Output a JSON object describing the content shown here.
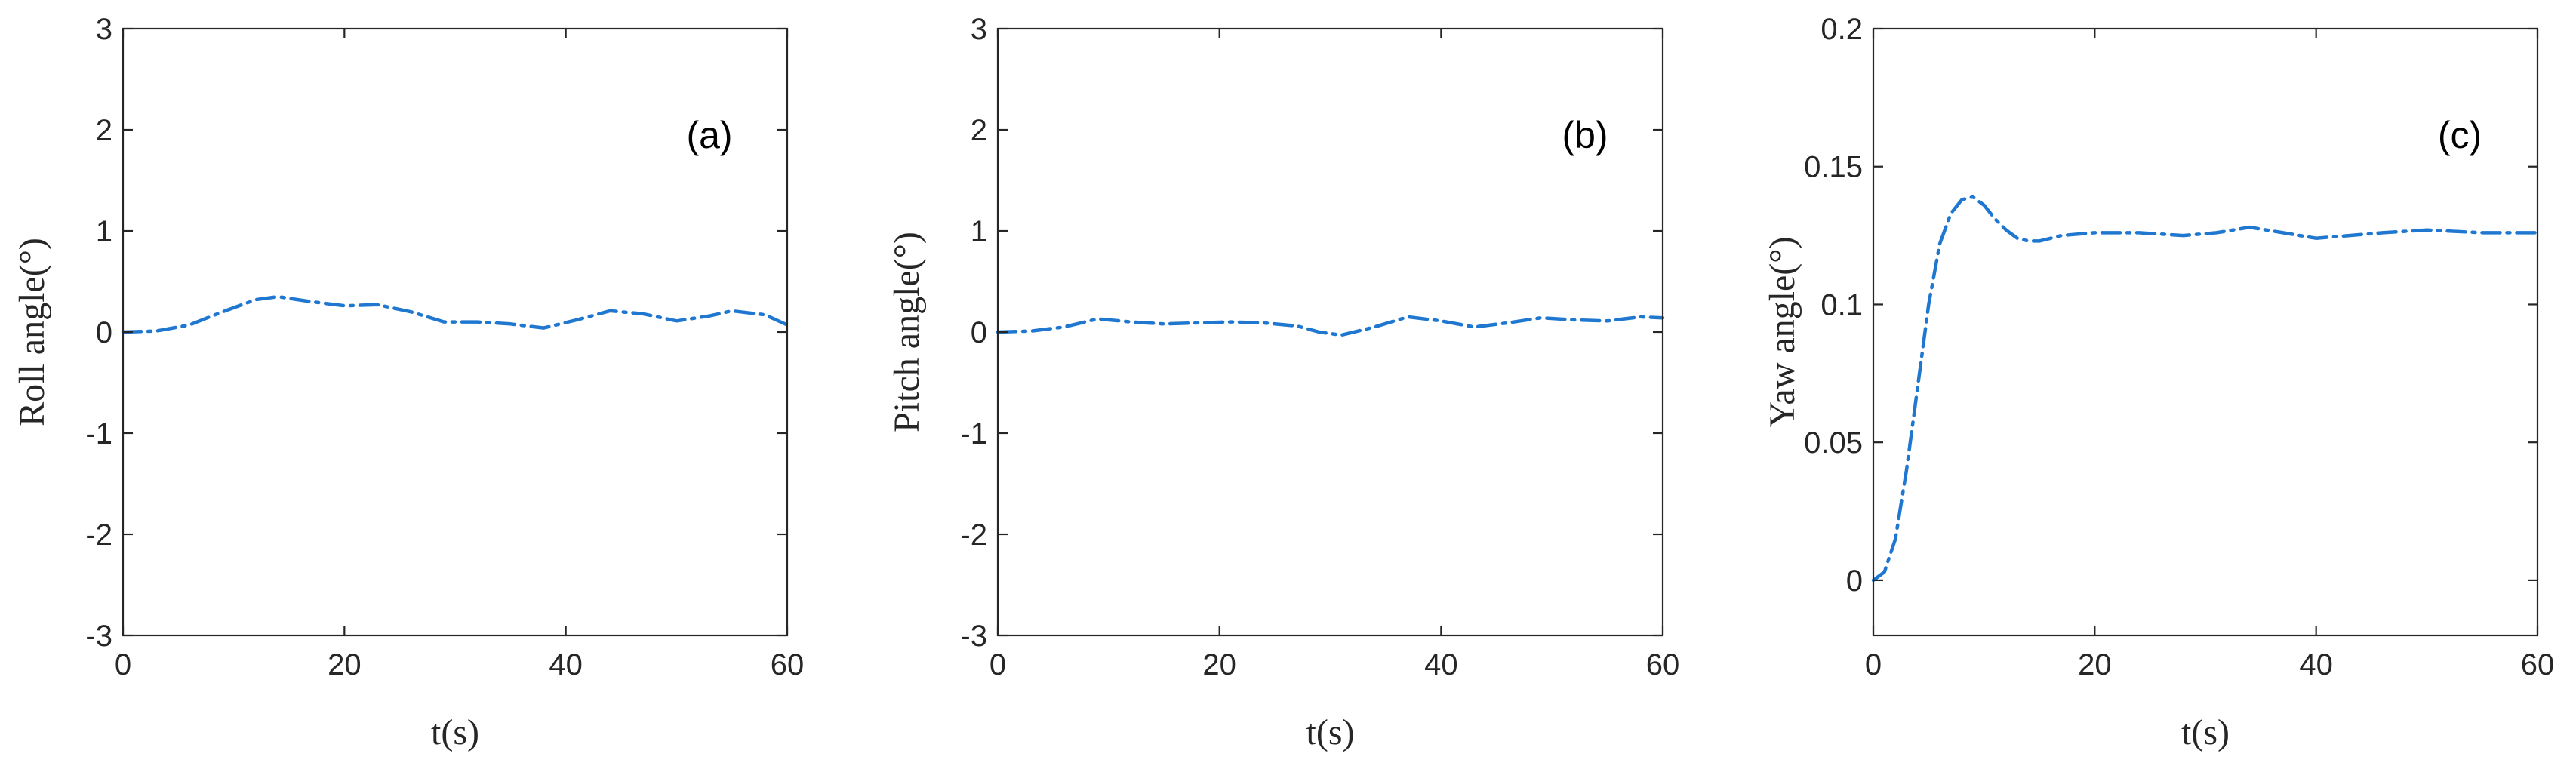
{
  "chart_data": [
    {
      "type": "line",
      "panel_label": "(a)",
      "xlabel": "t(s)",
      "ylabel": "Roll angle(°)",
      "xlim": [
        0,
        60
      ],
      "ylim": [
        -3,
        3
      ],
      "xticks": [
        0,
        20,
        40,
        60
      ],
      "yticks": [
        -3,
        -2,
        -1,
        0,
        1,
        2,
        3
      ],
      "xtick_labels": [
        "0",
        "20",
        "40",
        "60"
      ],
      "ytick_labels": [
        "-3",
        "-2",
        "-1",
        "0",
        "1",
        "2",
        "3"
      ],
      "grid": false,
      "line_style": "dash-dot",
      "color": "#1f77d0",
      "series": [
        {
          "x": [
            0,
            3,
            6,
            9,
            12,
            14,
            17,
            20,
            23,
            26,
            29,
            32,
            35,
            38,
            41,
            44,
            47,
            50,
            53,
            55,
            58,
            60
          ],
          "y": [
            0.0,
            0.01,
            0.07,
            0.2,
            0.32,
            0.35,
            0.3,
            0.26,
            0.27,
            0.2,
            0.1,
            0.1,
            0.08,
            0.04,
            0.12,
            0.21,
            0.18,
            0.11,
            0.16,
            0.21,
            0.17,
            0.07
          ]
        }
      ]
    },
    {
      "type": "line",
      "panel_label": "(b)",
      "xlabel": "t(s)",
      "ylabel": "Pitch angle(°)",
      "xlim": [
        0,
        60
      ],
      "ylim": [
        -3,
        3
      ],
      "xticks": [
        0,
        20,
        40,
        60
      ],
      "yticks": [
        -3,
        -2,
        -1,
        0,
        1,
        2,
        3
      ],
      "xtick_labels": [
        "0",
        "20",
        "40",
        "60"
      ],
      "ytick_labels": [
        "-3",
        "-2",
        "-1",
        "0",
        "1",
        "2",
        "3"
      ],
      "grid": false,
      "line_style": "dash-dot",
      "color": "#1f77d0",
      "series": [
        {
          "x": [
            0,
            3,
            6,
            9,
            12,
            15,
            18,
            21,
            24,
            27,
            29,
            31,
            34,
            37,
            40,
            43,
            46,
            49,
            52,
            55,
            58,
            60
          ],
          "y": [
            0.0,
            0.01,
            0.05,
            0.13,
            0.1,
            0.08,
            0.09,
            0.1,
            0.09,
            0.06,
            0.0,
            -0.03,
            0.05,
            0.15,
            0.11,
            0.05,
            0.09,
            0.14,
            0.12,
            0.11,
            0.15,
            0.14
          ]
        }
      ]
    },
    {
      "type": "line",
      "panel_label": "(c)",
      "xlabel": "t(s)",
      "ylabel": "Yaw angle(°)",
      "xlim": [
        0,
        60
      ],
      "ylim": [
        -0.02,
        0.2
      ],
      "xticks": [
        0,
        20,
        40,
        60
      ],
      "yticks": [
        0,
        0.05,
        0.1,
        0.15,
        0.2
      ],
      "xtick_labels": [
        "0",
        "20",
        "40",
        "60"
      ],
      "ytick_labels": [
        "0",
        "0.05",
        "0.1",
        "0.15",
        "0.2"
      ],
      "grid": false,
      "line_style": "dash-dot",
      "color": "#1f77d0",
      "series": [
        {
          "x": [
            0,
            1,
            2,
            3,
            4,
            5,
            6,
            7,
            8,
            9,
            10,
            11,
            12,
            13,
            14,
            15,
            17,
            20,
            24,
            28,
            31,
            34,
            37,
            40,
            43,
            46,
            50,
            55,
            60
          ],
          "y": [
            0.0,
            0.003,
            0.015,
            0.04,
            0.07,
            0.1,
            0.122,
            0.133,
            0.138,
            0.139,
            0.136,
            0.131,
            0.127,
            0.124,
            0.123,
            0.123,
            0.125,
            0.126,
            0.126,
            0.125,
            0.126,
            0.128,
            0.126,
            0.124,
            0.125,
            0.126,
            0.127,
            0.126,
            0.126
          ]
        }
      ]
    }
  ]
}
